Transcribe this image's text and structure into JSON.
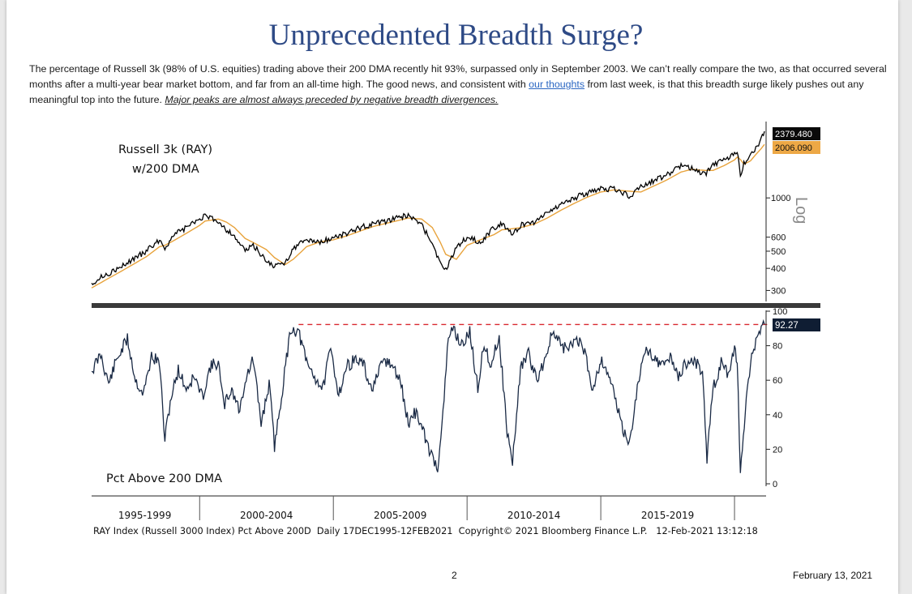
{
  "page": {
    "title": "Unprecedented Breadth Surge?",
    "intro": {
      "part1": "The percentage of Russell 3k (98% of U.S. equities) trading above their 200 DMA recently hit 93%, surpassed only in September 2003. We can’t really compare the two, as that occurred several months after a multi-year bear market bottom, and far from an all-time high. The good news, and consistent with ",
      "link_text": "our thoughts",
      "part2": " from last week, is that this breadth surge likely pushes out any meaningful top into the future. ",
      "emphasis": "Major peaks are almost always preceded by negative breadth divergences."
    },
    "page_number": "2",
    "date": "February 13, 2021"
  },
  "colors": {
    "price": "#000000",
    "dma": "#e8a33c",
    "breadth": "#1a2a45",
    "dashed": "#d9282f",
    "divider": "#3a3a3a",
    "title": "#2e4a86"
  },
  "chart_data": [
    {
      "type": "line",
      "title": "Russell 3k (RAY)",
      "subtitle": "w/200 DMA",
      "scale": "log",
      "scale_label": "Log",
      "ylim": [
        260,
        2700
      ],
      "y_ticks": [
        300,
        400,
        500,
        600,
        1000
      ],
      "y_tick_labels": [
        "300",
        "400",
        "500",
        "600",
        "1000"
      ],
      "last_values": [
        {
          "name": "RAY",
          "label": "2379.480",
          "value": 2379.48
        },
        {
          "name": "200 DMA",
          "label": "2006.090",
          "value": 2006.09
        }
      ],
      "x_range": [
        1995.96,
        2021.12
      ],
      "series": [
        {
          "name": "Russell 3000 (RAY)",
          "x": [
            1995.96,
            1996.5,
            1997.0,
            1997.5,
            1998.0,
            1998.5,
            1998.7,
            1999.0,
            1999.5,
            2000.0,
            2000.2,
            2000.7,
            2001.0,
            2001.3,
            2001.7,
            2002.0,
            2002.5,
            2002.8,
            2003.2,
            2003.5,
            2004.0,
            2004.5,
            2005.0,
            2005.5,
            2006.0,
            2006.5,
            2007.0,
            2007.5,
            2007.8,
            2008.3,
            2008.7,
            2009.0,
            2009.2,
            2009.6,
            2010.0,
            2010.5,
            2011.0,
            2011.3,
            2011.7,
            2012.0,
            2012.5,
            2013.0,
            2013.5,
            2014.0,
            2014.5,
            2015.0,
            2015.5,
            2016.1,
            2016.5,
            2017.0,
            2017.5,
            2018.0,
            2018.4,
            2018.9,
            2019.2,
            2019.6,
            2020.0,
            2020.1,
            2020.22,
            2020.35,
            2020.6,
            2020.8,
            2021.0,
            2021.12
          ],
          "values": [
            330,
            370,
            400,
            450,
            500,
            580,
            520,
            610,
            680,
            760,
            790,
            740,
            660,
            610,
            500,
            540,
            440,
            410,
            430,
            520,
            580,
            560,
            600,
            630,
            680,
            710,
            740,
            780,
            800,
            700,
            560,
            420,
            390,
            530,
            600,
            560,
            680,
            720,
            620,
            700,
            730,
            830,
            920,
            1000,
            1060,
            1120,
            1130,
            1020,
            1150,
            1260,
            1360,
            1530,
            1480,
            1350,
            1560,
            1620,
            1800,
            1860,
            1330,
            1550,
            1780,
            1900,
            2150,
            2379.48
          ]
        },
        {
          "name": "200 DMA",
          "x": [
            1995.96,
            1996.5,
            1997.0,
            1997.5,
            1998.0,
            1998.5,
            1998.7,
            1999.0,
            1999.5,
            2000.0,
            2000.2,
            2000.7,
            2001.0,
            2001.3,
            2001.7,
            2002.0,
            2002.5,
            2002.8,
            2003.2,
            2003.5,
            2004.0,
            2004.5,
            2005.0,
            2005.5,
            2006.0,
            2006.5,
            2007.0,
            2007.5,
            2007.8,
            2008.3,
            2008.7,
            2009.0,
            2009.2,
            2009.6,
            2010.0,
            2010.5,
            2011.0,
            2011.3,
            2011.7,
            2012.0,
            2012.5,
            2013.0,
            2013.5,
            2014.0,
            2014.5,
            2015.0,
            2015.5,
            2016.1,
            2016.5,
            2017.0,
            2017.5,
            2018.0,
            2018.4,
            2018.9,
            2019.2,
            2019.6,
            2020.0,
            2020.1,
            2020.22,
            2020.35,
            2020.6,
            2020.8,
            2021.0,
            2021.12
          ],
          "values": [
            310,
            345,
            380,
            420,
            465,
            530,
            540,
            570,
            630,
            700,
            740,
            760,
            730,
            680,
            590,
            560,
            510,
            460,
            420,
            450,
            530,
            565,
            580,
            610,
            650,
            690,
            720,
            750,
            770,
            760,
            680,
            560,
            480,
            450,
            540,
            580,
            620,
            660,
            670,
            680,
            710,
            770,
            850,
            930,
            1010,
            1080,
            1110,
            1090,
            1080,
            1170,
            1270,
            1400,
            1450,
            1430,
            1430,
            1520,
            1640,
            1700,
            1650,
            1550,
            1620,
            1760,
            1900,
            2006.09
          ]
        }
      ]
    },
    {
      "type": "line",
      "title": "Pct Above 200 DMA",
      "ylim": [
        0,
        100
      ],
      "y_ticks": [
        0,
        20,
        40,
        60,
        80,
        100
      ],
      "y_tick_labels": [
        "0",
        "20",
        "40",
        "60",
        "80",
        "100"
      ],
      "last_value_label": "92.27",
      "reference_line": {
        "value": 92.3,
        "style": "dashed",
        "from_x": 2003.7
      },
      "x_range": [
        1995.96,
        2021.12
      ],
      "x_labels": [
        "1995-1999",
        "2000-2004",
        "2005-2009",
        "2010-2014",
        "2015-2019"
      ],
      "x_label_centers": [
        1997.95,
        2002.5,
        2007.5,
        2012.5,
        2017.5
      ],
      "x_period_boundaries": [
        2000.0,
        2005.0,
        2010.0,
        2015.0,
        2020.0
      ],
      "series": [
        {
          "name": "Pct Above 200 DMA",
          "x": [
            1995.96,
            1996.3,
            1996.6,
            1996.9,
            1997.3,
            1997.6,
            1997.9,
            1998.2,
            1998.5,
            1998.7,
            1998.9,
            1999.2,
            1999.5,
            1999.8,
            2000.1,
            2000.4,
            2000.7,
            2000.9,
            2001.2,
            2001.5,
            2001.7,
            2002.0,
            2002.3,
            2002.6,
            2002.8,
            2003.1,
            2003.4,
            2003.7,
            2004.0,
            2004.3,
            2004.6,
            2004.9,
            2005.2,
            2005.5,
            2005.8,
            2006.1,
            2006.4,
            2006.6,
            2006.9,
            2007.2,
            2007.5,
            2007.8,
            2008.1,
            2008.4,
            2008.7,
            2008.9,
            2009.1,
            2009.3,
            2009.5,
            2009.8,
            2010.1,
            2010.4,
            2010.6,
            2010.9,
            2011.2,
            2011.5,
            2011.7,
            2012.0,
            2012.3,
            2012.6,
            2012.9,
            2013.2,
            2013.5,
            2013.8,
            2014.1,
            2014.4,
            2014.7,
            2015.0,
            2015.3,
            2015.6,
            2015.9,
            2016.1,
            2016.4,
            2016.7,
            2017.0,
            2017.3,
            2017.6,
            2017.9,
            2018.2,
            2018.5,
            2018.8,
            2018.97,
            2019.2,
            2019.5,
            2019.8,
            2020.0,
            2020.1,
            2020.22,
            2020.4,
            2020.6,
            2020.8,
            2021.0,
            2021.12
          ],
          "values": [
            65,
            75,
            58,
            72,
            84,
            60,
            52,
            74,
            70,
            25,
            48,
            66,
            55,
            62,
            50,
            68,
            70,
            45,
            55,
            42,
            60,
            72,
            35,
            58,
            22,
            55,
            90,
            88,
            70,
            62,
            55,
            78,
            52,
            68,
            72,
            70,
            55,
            60,
            72,
            68,
            60,
            35,
            42,
            28,
            15,
            10,
            40,
            85,
            90,
            80,
            88,
            55,
            80,
            70,
            85,
            30,
            12,
            68,
            75,
            60,
            72,
            88,
            80,
            78,
            85,
            76,
            55,
            72,
            64,
            45,
            28,
            25,
            60,
            78,
            74,
            68,
            74,
            62,
            70,
            72,
            65,
            15,
            55,
            70,
            62,
            78,
            72,
            5,
            40,
            72,
            82,
            90,
            92.27
          ]
        }
      ]
    }
  ],
  "chart_footer": {
    "source_line": "RAY Index (Russell 3000 Index) Pct Above 200D  Daily 17DEC1995-12FEB2021  Copyright© 2021 Bloomberg Finance L.P.   12-Feb-2021 13:12:18"
  }
}
